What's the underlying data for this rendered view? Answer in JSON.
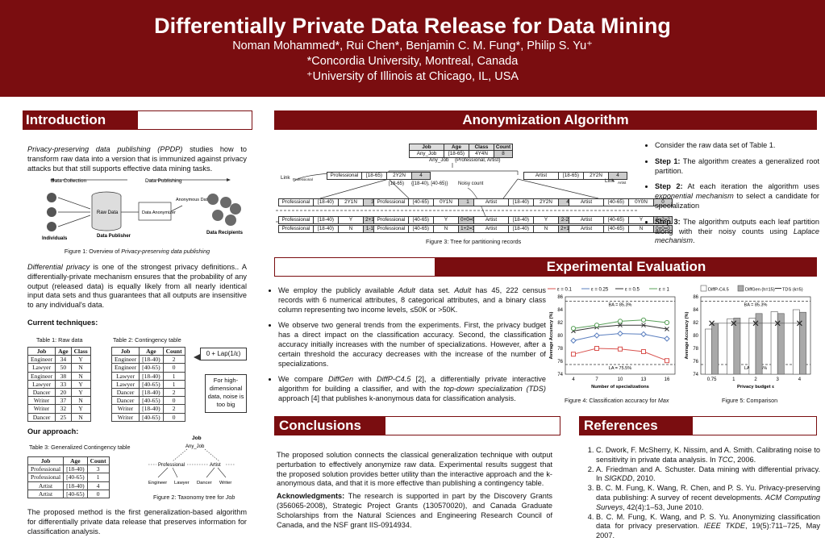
{
  "header": {
    "title": "Differentially Private Data Release for Data Mining",
    "authors": "Noman Mohammed*, Rui Chen*, Benjamin C. M. Fung*, Philip S. Yu⁺",
    "aff1": "*Concordia University, Montreal, Canada",
    "aff2": "⁺University of Illinois at Chicago, IL, USA"
  },
  "sections": {
    "introduction": "Introduction",
    "anonymization": "Anonymization Algorithm",
    "experimental": "Experimental Evaluation",
    "conclusions": "Conclusions",
    "references": "References"
  },
  "intro": {
    "p1_em": "Privacy-preserving data publishing (PPDP)",
    "p1_rest": " studies how to transform raw data into a version that is immunized against privacy attacks but that still supports effective data mining tasks.",
    "fig1_labels": {
      "data_collection": "Data Collection",
      "data_publishing": "Data Publishing",
      "raw_data": "Raw Data",
      "anonymizer": "Data Anonymizer",
      "anon_data": "Anonymous Data",
      "individuals": "Individuals",
      "publisher": "Data Publisher",
      "recipients": "Data Recipients"
    },
    "fig1_caption_pre": "Figure 1: Overview of ",
    "fig1_caption_em": "Privacy-preserving data publishing",
    "p2_em": "Differential privacy",
    "p2_rest": " is one of the strongest privacy definitions.. A differentially-private mechanism ensures that the probability of any output (released data) is equally likely from all nearly identical input data sets and thus guarantees that all outputs are insensitive to any individual's data.",
    "current_heading": "Current techniques:",
    "table1_caption": "Table 1: Raw data",
    "table2_caption": "Table 2: Contingency table",
    "table1": {
      "headers": [
        "Job",
        "Age",
        "Class"
      ],
      "rows": [
        [
          "Engineer",
          "34",
          "Y"
        ],
        [
          "Lawyer",
          "50",
          "N"
        ],
        [
          "Engineer",
          "38",
          "N"
        ],
        [
          "Lawyer",
          "33",
          "Y"
        ],
        [
          "Dancer",
          "20",
          "Y"
        ],
        [
          "Writer",
          "37",
          "N"
        ],
        [
          "Writer",
          "32",
          "Y"
        ],
        [
          "Dancer",
          "25",
          "N"
        ]
      ]
    },
    "table2": {
      "headers": [
        "Job",
        "Age",
        "Count"
      ],
      "rows": [
        [
          "Engineer",
          "[18-40)",
          "2"
        ],
        [
          "Engineer",
          "[40-65)",
          "0"
        ],
        [
          "Lawyer",
          "[18-40)",
          "1"
        ],
        [
          "Lawyer",
          "[40-65)",
          "1"
        ],
        [
          "Dancer",
          "[18-40)",
          "2"
        ],
        [
          "Dancer",
          "[40-65)",
          "0"
        ],
        [
          "Writer",
          "[18-40)",
          "2"
        ],
        [
          "Writer",
          "[40-65)",
          "0"
        ]
      ]
    },
    "lap_box": "0 + Lap(1/ε)",
    "note_box": "For high-dimensional data, noise is too big",
    "approach_heading": "Our approach:",
    "table3_caption": "Table 3: Generalized Contingency table",
    "table3": {
      "headers": [
        "Job",
        "Age",
        "Count"
      ],
      "rows": [
        [
          "Professional",
          "[18-40)",
          "3"
        ],
        [
          "Professional",
          "[40-65)",
          "1"
        ],
        [
          "Artist",
          "[18-40)",
          "4"
        ],
        [
          "Artist",
          "[40-65)",
          "0"
        ]
      ]
    },
    "fig2": {
      "job": "Job",
      "any_job": "Any_Job",
      "professional": "Professional",
      "artist": "Artist",
      "engineer": "Engineer",
      "lawyer": "Lawyer",
      "dancer": "Dancer",
      "writer": "Writer",
      "caption_pre": "Figure 2: Taxonomy tree for ",
      "caption_em": "Job"
    },
    "p3": "The proposed method is the first generalization-based algorithm for differentially private data release that preserves information for classification analysis."
  },
  "tree": {
    "headers": [
      "Job",
      "Age",
      "Class",
      "Count"
    ],
    "root_row": [
      "Any_Job",
      "[18-65)",
      "4Y4N",
      "8"
    ],
    "root_label": "Any_Job",
    "root_edge": "{Professional, Artist}",
    "prof": [
      "Professional",
      "[18-65)",
      "2Y2N",
      "4"
    ],
    "artist": [
      "Artist",
      "[18-65)",
      "2Y2N",
      "4"
    ],
    "link_prof": "Link",
    "link_prof_sub": "Professional",
    "link_artist": "Link",
    "link_artist_sub": "Artist",
    "age_edge_l": "[18-65)",
    "age_edge_m": "{[18-40), [40-65)}",
    "noisy": "Noisy count",
    "level2": [
      [
        "Professional",
        "[18-40)",
        "2Y1N",
        "3"
      ],
      [
        "Professional",
        "[40-65)",
        "0Y1N",
        "1"
      ],
      [
        "Artist",
        "[18-40)",
        "2Y2N",
        "4"
      ],
      [
        "Artist",
        "[40-65)",
        "0Y0N",
        "0"
      ]
    ],
    "row_y": [
      [
        "Professional",
        "[18-40)",
        "Y",
        "2+1=3"
      ],
      [
        "Professional",
        "[40-65)",
        "Y",
        "0+0=0"
      ],
      [
        "Artist",
        "[18-40)",
        "Y",
        "2-2=0"
      ],
      [
        "Artist",
        "[40-65)",
        "Y",
        "0+2=2"
      ]
    ],
    "row_n": [
      [
        "Professional",
        "[18-40)",
        "N",
        "1-1=0"
      ],
      [
        "Professional",
        "[40-65)",
        "N",
        "1+2=3"
      ],
      [
        "Artist",
        "[18-40)",
        "N",
        "2+1=3"
      ],
      [
        "Artist",
        "[40-65)",
        "N",
        "0+0=0"
      ]
    ],
    "caption": "Figure 3: Tree for partitioning records"
  },
  "algo_bullets": {
    "b1": "Consider the raw data set of Table 1.",
    "b2_label": "Step 1:",
    "b2_text": " The algorithm creates a generalized root partition.",
    "b3_label": "Step 2:",
    "b3_pre": " At each iteration the algorithm uses ",
    "b3_em": "exponential mechanism",
    "b3_post": " to select a candidate for specialization",
    "b4_label": "Step 3:",
    "b4_pre": " The algorithm outputs each leaf partition along with their noisy counts using ",
    "b4_em": "Laplace mechanism",
    "b4_post": "."
  },
  "exp_bullets": {
    "b1_pre": "We employ the publicly available ",
    "b1_em1": "Adult",
    "b1_mid": " data set. ",
    "b1_em2": "Adult",
    "b1_post": " has 45, 222 census records with 6 numerical attributes, 8 categorical attributes, and a binary class column representing two income levels, ≤50K or >50K.",
    "b2": "We observe two general trends from the experiments. First, the privacy budget has a direct impact on the classification accuracy. Second, the classification accuracy initially increases with the number of specializations. However, after a certain threshold the accuracy  decreases with the increase of the number of specializations.",
    "b3_pre": "We compare ",
    "b3_em1": "DiffGen",
    "b3_mid1": " with ",
    "b3_em2": "DiffP-C4.5",
    "b3_mid2": " [2], a differentially private interactive algorithm for building a classifier, and with the ",
    "b3_em3": "top-down specialization (TDS)",
    "b3_post": " approach [4] that publishes k-anonymous data for classification analysis."
  },
  "chart_data": [
    {
      "type": "line",
      "x": [
        4,
        7,
        10,
        13,
        16
      ],
      "series": [
        {
          "name": "ε = 0.1",
          "values": [
            77.1,
            78.0,
            77.9,
            77.5,
            76.1
          ],
          "color": "#d9534f"
        },
        {
          "name": "ε = 0.25",
          "values": [
            79.2,
            80.0,
            80.3,
            80.2,
            79.5
          ],
          "color": "#5b7fbf"
        },
        {
          "name": "ε = 0.5",
          "values": [
            80.7,
            81.3,
            81.6,
            81.6,
            81.0
          ],
          "color": "#333333"
        },
        {
          "name": "ε = 1",
          "values": [
            81.1,
            81.6,
            82.2,
            82.4,
            82.0
          ],
          "color": "#5aa05a"
        }
      ],
      "reference_lines": [
        {
          "label": "BA = 85.3%",
          "value": 85.3
        },
        {
          "label": "LA = 75.5%",
          "value": 75.5
        }
      ],
      "xlabel": "Number of specializations",
      "ylabel": "Average Accuracy (%)",
      "xticks": [
        4,
        7,
        10,
        13,
        16
      ],
      "ylim": [
        74,
        86
      ],
      "yticks": [
        74,
        76,
        78,
        80,
        82,
        84,
        86
      ],
      "caption_pre": "Figure 4: Classification accuracy for ",
      "caption_em": "Max"
    },
    {
      "type": "bar",
      "categories": [
        "0.75",
        "1",
        "2",
        "3",
        "4"
      ],
      "series": [
        {
          "name": "DiffP-C4.5",
          "values": [
            81.0,
            82.6,
            82.7,
            83.7,
            84.0
          ],
          "color": "#ffffff"
        },
        {
          "name": "DiffGen (h=15)",
          "values": [
            81.9,
            82.7,
            83.4,
            83.4,
            83.6
          ],
          "color": "#a9a9a9"
        },
        {
          "name": "TDS (k=5)",
          "values": [
            81.9,
            81.9,
            81.9,
            81.9,
            81.9
          ],
          "color": "#333333"
        }
      ],
      "reference_lines": [
        {
          "label": "BA = 85.3%",
          "value": 85.3
        },
        {
          "label": "LA = 75.5%",
          "value": 75.5
        }
      ],
      "xlabel": "Privacy budget ε",
      "ylabel": "Average Accuracy (%)",
      "ylim": [
        74,
        86
      ],
      "yticks": [
        74,
        76,
        78,
        80,
        82,
        84,
        86
      ],
      "caption": "Figure 5: Comparison"
    }
  ],
  "conclusions": {
    "p1": "The proposed solution connects the classical generalization technique with output perturbation to effectively anonymize raw data. Experimental results suggest that the proposed solution provides better utility than the interactive approach and the k-anonymous data, and that it is more effective than publishing a contingency table.",
    "ack_label": "Acknowledgments:",
    "ack_text": " The research is supported in part by the Discovery Grants (356065-2008), Strategic Project Grants (130570020), and Canada Graduate Scholarships from the Natural Sciences and Engineering Research Council of Canada, and the NSF grant IIS-0914934."
  },
  "references": [
    {
      "pre": "C. Dwork, F. McSherry, K. Nissim, and A. Smith. Calibrating noise to sensitivity in private data analysis. In ",
      "em": "TCC",
      "post": ", 2006."
    },
    {
      "pre": "A. Friedman and A. Schuster. Data mining with differential privacy. In ",
      "em": "SIGKDD",
      "post": ", 2010."
    },
    {
      "pre": "B. C. M. Fung, K. Wang, R. Chen, and P. S. Yu. Privacy-preserving data publishing: A survey of recent developments. ",
      "em": "ACM Computing Surveys",
      "post": ", 42(4):1–53, June 2010."
    },
    {
      "pre": "B. C. M. Fung, K. Wang, and P. S. Yu. Anonymizing classification data for privacy preservation. ",
      "em": "IEEE TKDE",
      "post": ", 19(5):711–725, May 2007."
    }
  ]
}
